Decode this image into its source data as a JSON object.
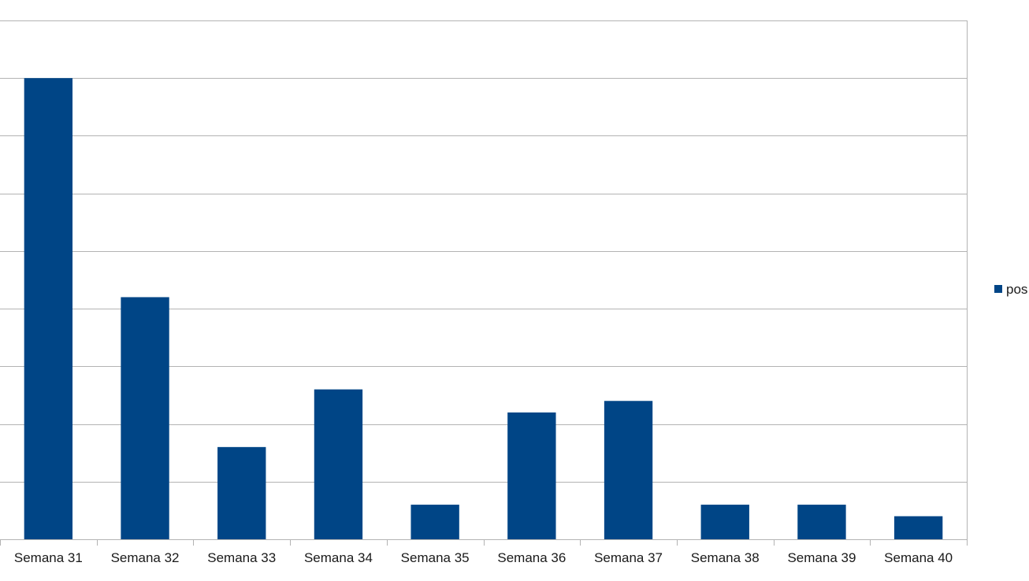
{
  "chart_data": {
    "type": "bar",
    "categories": [
      "Semana 31",
      "Semana 32",
      "Semana 33",
      "Semana 34",
      "Semana 35",
      "Semana 36",
      "Semana 37",
      "Semana 38",
      "Semana 39",
      "Semana 40"
    ],
    "series": [
      {
        "name": "pos",
        "values": [
          40,
          21,
          8,
          13,
          3,
          11,
          12,
          3,
          3,
          2
        ],
        "color": "#004586"
      }
    ],
    "ylim": [
      0,
      45
    ],
    "y_grid_step": 5,
    "grid": true,
    "y_tick_labels_shown": false,
    "legend_position": "right",
    "title": "",
    "xlabel": "",
    "ylabel": ""
  }
}
